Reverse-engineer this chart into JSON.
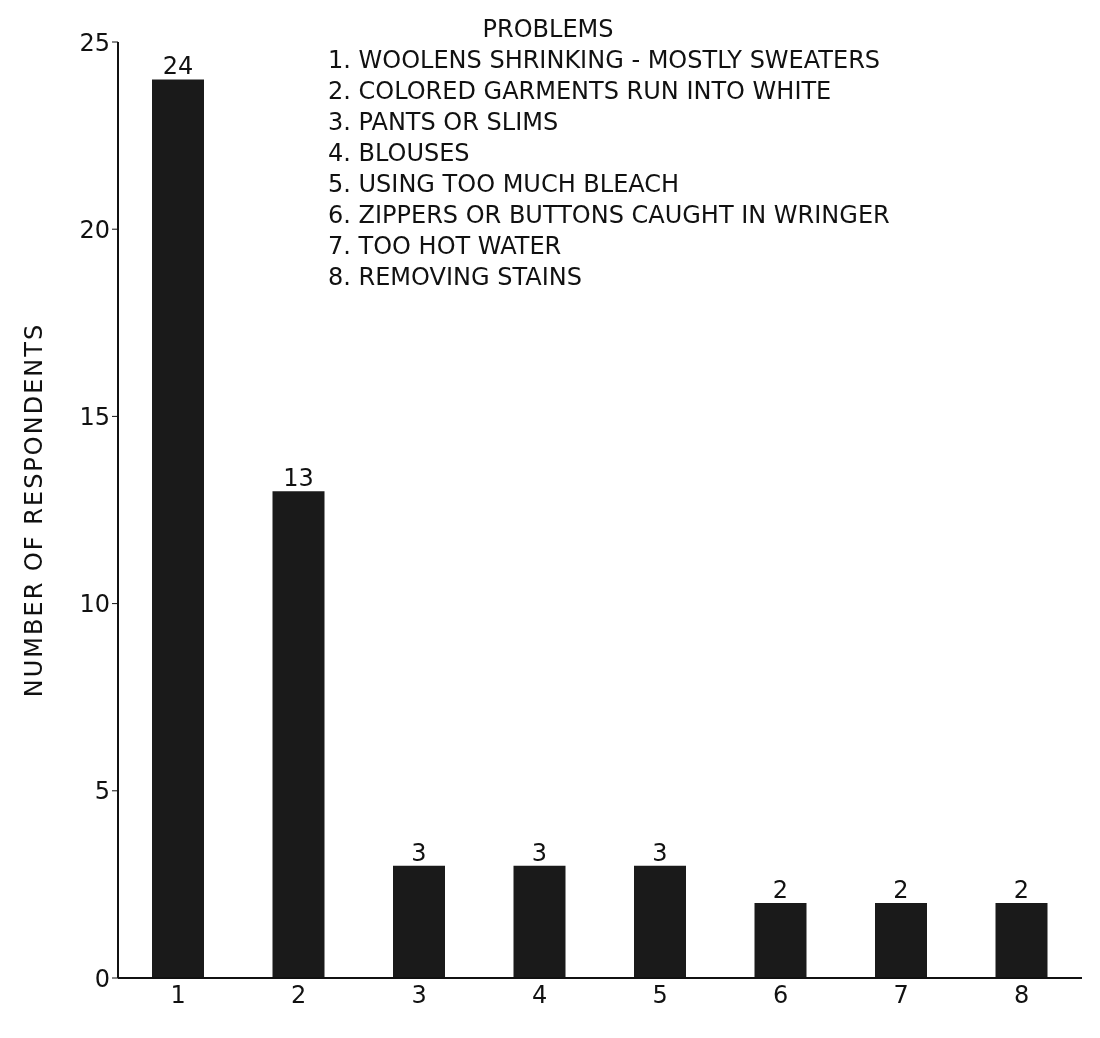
{
  "chart_data": {
    "type": "bar",
    "ylabel": "NUMBER OF RESPONDENTS",
    "categories": [
      "1",
      "2",
      "3",
      "4",
      "5",
      "6",
      "7",
      "8"
    ],
    "values": [
      24,
      13,
      3,
      3,
      3,
      2,
      2,
      2
    ],
    "color": "#1a1a1a",
    "ylim": [
      0,
      25
    ],
    "yticks": [
      0,
      5,
      10,
      15,
      20,
      25
    ],
    "data_labels": true,
    "grid": false,
    "annotations": [
      "PROBLEMS",
      "1. WOOLENS SHRINKING - MOSTLY SWEATERS",
      "2. COLORED GARMENTS RUN INTO WHITE",
      "3. PANTS OR SLIMS",
      "4. BLOUSES",
      "5. USING TOO MUCH BLEACH",
      "6. ZIPPERS OR BUTTONS CAUGHT IN WRINGER",
      "7. TOO HOT WATER",
      "8. REMOVING STAINS"
    ]
  }
}
